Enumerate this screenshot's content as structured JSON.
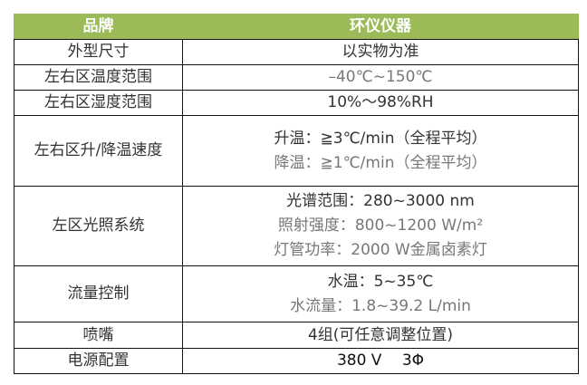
{
  "header": {
    "col1": "品牌",
    "col2": "环仪仪器"
  },
  "header_color": "#9bbb59",
  "rows": [
    {
      "label": "外型尺寸",
      "lines": [
        "以实物为准"
      ]
    },
    {
      "label": "左右区温度范围",
      "lines": [
        "–40℃~150℃"
      ]
    },
    {
      "label": "左右区湿度范围",
      "lines": [
        "10%～98%RH"
      ]
    },
    {
      "label": "左右区升/降温速度",
      "lines": [
        "升温：≧3℃/min（全程平均）",
        "降温：≧1℃/min（全程平均）"
      ]
    },
    {
      "label": "左区光照系统",
      "lines": [
        "光谱范围：280~3000 nm",
        "照射强度：800~1200 W/m²",
        "灯管功率：2000 W金属卤素灯"
      ]
    },
    {
      "label": "流量控制",
      "lines": [
        "水温：5~35℃",
        "水流量：1.8~39.2 L/min"
      ]
    },
    {
      "label": "喷嘴",
      "lines": [
        "4组(可任意调整位置)"
      ]
    },
    {
      "label": "电源配置",
      "lines": [
        "380 V　 3Φ"
      ]
    }
  ]
}
